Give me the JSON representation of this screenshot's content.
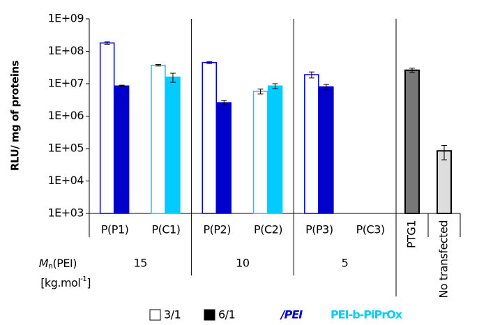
{
  "chart_data": {
    "type": "bar",
    "y_label": "RLU/ mg of proteins",
    "log_scale": true,
    "ylim": [
      1000,
      1000000000
    ],
    "yticks": [
      {
        "value": 1000,
        "label": "1E+03"
      },
      {
        "value": 10000,
        "label": "1E+04"
      },
      {
        "value": 100000,
        "label": "1E+05"
      },
      {
        "value": 1000000,
        "label": "1E+06"
      },
      {
        "value": 10000000,
        "label": "1E+07"
      },
      {
        "value": 100000000,
        "label": "1E+08"
      },
      {
        "value": 1000000000,
        "label": "1E+09"
      }
    ],
    "categories": [
      "P(P1)",
      "P(C1)",
      "P(P2)",
      "P(C2)",
      "P(P3)",
      "P(C3)"
    ],
    "category_colors": [
      "#0000cc",
      "#00ccff",
      "#0000cc",
      "#00ccff",
      "#0000cc",
      "#00ccff"
    ],
    "series": [
      {
        "name": "3/1",
        "filled": false,
        "values": [
          180000000,
          37000000,
          45000000,
          5800000,
          19000000,
          null
        ],
        "errors": [
          15000000,
          2000000,
          3000000,
          1000000,
          4000000,
          null
        ]
      },
      {
        "name": "6/1",
        "filled": true,
        "values": [
          8500000,
          16000000,
          2600000,
          8500000,
          8000000,
          null
        ],
        "errors": [
          500000,
          5000000,
          400000,
          1500000,
          1500000,
          null
        ]
      }
    ],
    "controls": {
      "categories": [
        "PTG1",
        "No transfected"
      ],
      "colors": [
        "#777777",
        "#dddddd"
      ],
      "values": [
        26000000,
        85000
      ],
      "errors": [
        4000000,
        40000
      ]
    },
    "group_axis_label": {
      "symbol": "M",
      "subscript": "n",
      "text": "(PEI)",
      "unit": "[kg.mol",
      "unit_exp": "-1",
      "unit_end": "]"
    },
    "groups": [
      "15",
      "10",
      "5"
    ],
    "legend_groups": [
      {
        "label": "/PEI",
        "color": "#0000cc"
      },
      {
        "label": "PEI-b-PiPrOx",
        "color": "#00ccff"
      }
    ]
  }
}
